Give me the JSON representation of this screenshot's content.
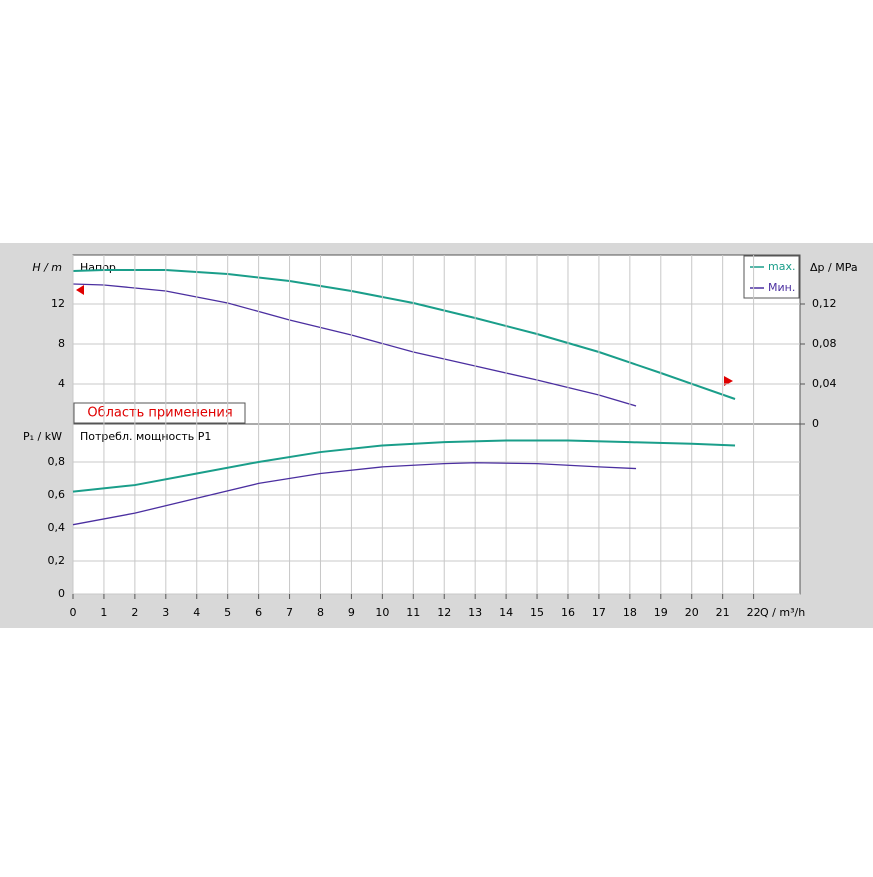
{
  "chart_data": [
    {
      "type": "line",
      "ylabel": "H / m",
      "title": "Напор",
      "y2label": "Δp / MPa",
      "band_label": "Область применения",
      "xlim": [
        0,
        23.5
      ],
      "ylim": [
        0,
        16.9
      ],
      "yticks": [
        4,
        8,
        12
      ],
      "y2lim": [
        0,
        0.169
      ],
      "y2ticks": [
        0,
        {
          "value": 0.04,
          "label": "0,04"
        },
        {
          "value": 0.08,
          "label": "0,08"
        },
        {
          "value": 0.12,
          "label": "0,12"
        }
      ],
      "grid": true,
      "legend": "upper right",
      "series": [
        {
          "name": "max.",
          "color": "#1a9e8a",
          "x": [
            0,
            1,
            3,
            5,
            7,
            9,
            11,
            13,
            15,
            17,
            19,
            21.4
          ],
          "values": [
            15.3,
            15.4,
            15.4,
            15.0,
            14.3,
            13.3,
            12.1,
            10.6,
            9.0,
            7.2,
            5.1,
            2.5
          ]
        },
        {
          "name": "Мин.",
          "color": "#4b2fa0",
          "x": [
            0,
            1,
            3,
            5,
            7,
            9,
            11,
            13,
            15,
            17,
            18.2
          ],
          "values": [
            14.0,
            13.9,
            13.3,
            12.1,
            10.4,
            8.9,
            7.2,
            5.8,
            4.4,
            2.9,
            1.8
          ]
        }
      ]
    },
    {
      "type": "line",
      "ylabel": "P₁ / kW",
      "title": "Потребл. мощность P1",
      "xlabel": "Q / m³/h",
      "xlim": [
        0,
        23.5
      ],
      "xticks": [
        0,
        1,
        2,
        3,
        4,
        5,
        6,
        7,
        8,
        9,
        10,
        11,
        12,
        13,
        14,
        15,
        16,
        17,
        18,
        19,
        20,
        21,
        22
      ],
      "ylim": [
        0,
        1.03
      ],
      "yticks": [
        0,
        {
          "value": 0.2,
          "label": "0,2"
        },
        {
          "value": 0.4,
          "label": "0,4"
        },
        {
          "value": 0.6,
          "label": "0,6"
        },
        {
          "value": 0.8,
          "label": "0,8"
        }
      ],
      "grid": true,
      "series": [
        {
          "color": "#1a9e8a",
          "x": [
            0,
            2,
            4,
            6,
            8,
            10,
            12,
            14,
            16,
            18,
            20,
            21.4
          ],
          "values": [
            0.62,
            0.66,
            0.73,
            0.8,
            0.86,
            0.9,
            0.92,
            0.93,
            0.93,
            0.92,
            0.91,
            0.9
          ]
        },
        {
          "color": "#4b2fa0",
          "x": [
            0,
            2,
            4,
            6,
            8,
            10,
            12,
            13,
            15,
            17,
            18.2
          ],
          "values": [
            0.42,
            0.49,
            0.58,
            0.67,
            0.73,
            0.77,
            0.79,
            0.795,
            0.79,
            0.77,
            0.76
          ]
        }
      ]
    }
  ]
}
